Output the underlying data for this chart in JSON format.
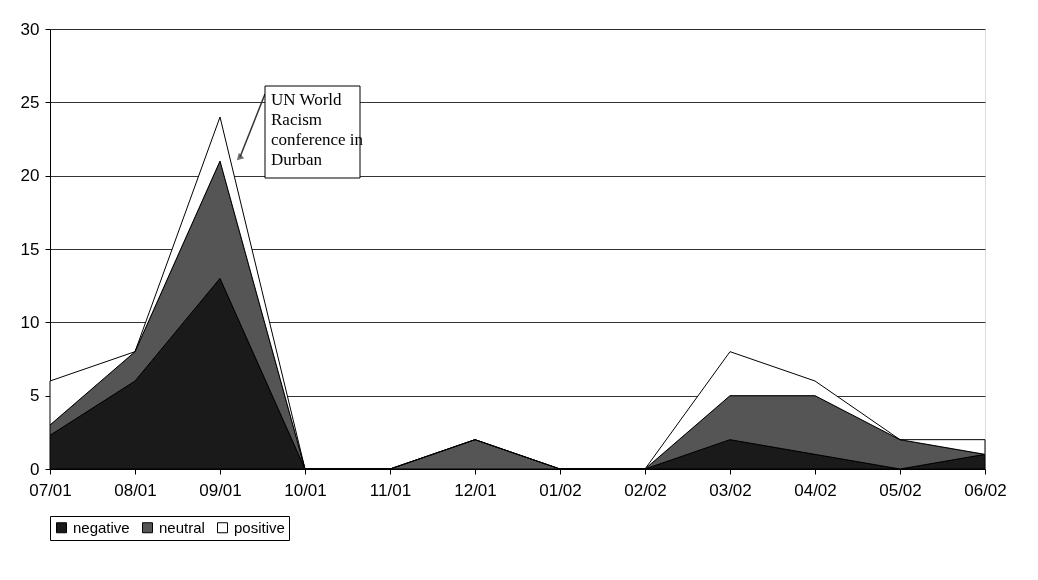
{
  "chart_data": {
    "type": "area",
    "stacked": true,
    "categories": [
      "07/01",
      "08/01",
      "09/01",
      "10/01",
      "11/01",
      "12/01",
      "01/02",
      "02/02",
      "03/02",
      "04/02",
      "05/02",
      "06/02"
    ],
    "series": [
      {
        "name": "negative",
        "color": "#1a1a1a",
        "values": [
          2.3,
          6,
          13,
          0,
          0,
          0,
          0,
          0,
          2,
          1,
          0,
          1
        ]
      },
      {
        "name": "neutral",
        "color": "#555555",
        "values": [
          0.7,
          2,
          8,
          0,
          0,
          2,
          0,
          0,
          3,
          4,
          2,
          0
        ]
      },
      {
        "name": "positive",
        "color": "#ffffff",
        "values": [
          3,
          0,
          3,
          0,
          0,
          0,
          0,
          0,
          3,
          1,
          0,
          1
        ]
      }
    ],
    "ylim": [
      0,
      30
    ],
    "yticks": [
      0,
      5,
      10,
      15,
      20,
      25,
      30
    ],
    "grid": "y",
    "legend": "bottom",
    "annotations": [
      {
        "text": "UN World Racism conference in Durban",
        "x": "09/01",
        "y": 21
      }
    ]
  }
}
